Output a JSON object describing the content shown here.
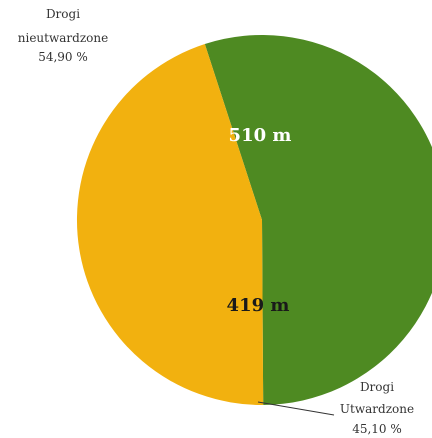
{
  "chart_data": {
    "type": "pie",
    "title": "",
    "slices": [
      {
        "label_lines": [
          "Drogi",
          "nieutwardzone",
          "54,90 %"
        ],
        "value_label": "510 m",
        "value": 510,
        "percent": 54.9,
        "color": "#4E8A22",
        "value_label_color": "#FFFFFF"
      },
      {
        "label_lines": [
          "Drogi",
          "Utwardzone",
          "45,10 %"
        ],
        "value_label": "419 m",
        "value": 419,
        "percent": 45.1,
        "color": "#F2B10F",
        "value_label_color": "#1A1A1A"
      }
    ]
  }
}
